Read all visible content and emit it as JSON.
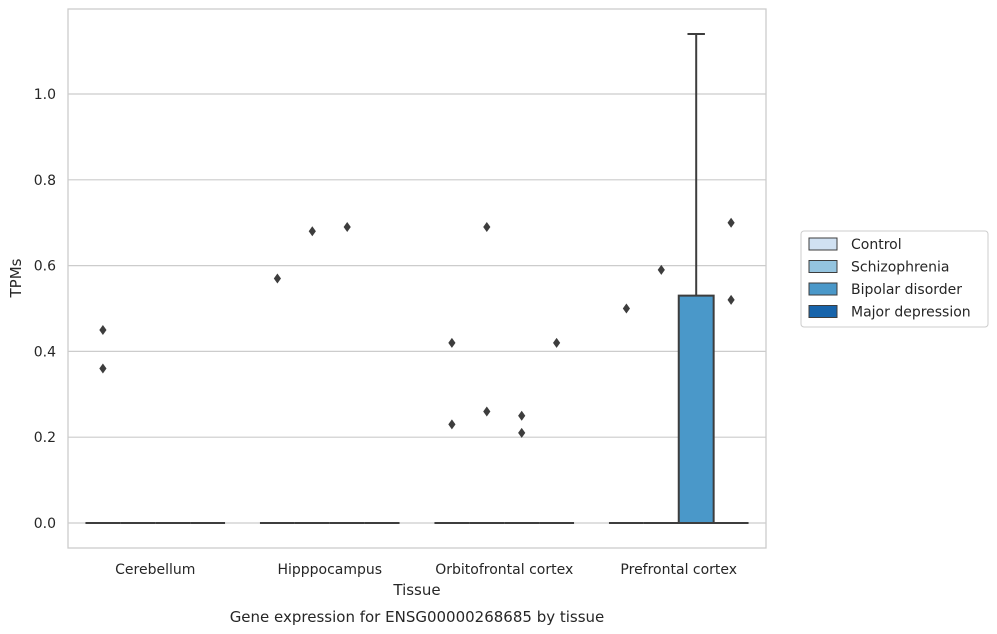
{
  "chart_data": {
    "type": "box",
    "categories": [
      "Cerebellum",
      "Hipppocampus",
      "Orbitofrontal cortex",
      "Prefrontal cortex"
    ],
    "xlabel": "Tissue",
    "ylabel": "TPMs",
    "caption": "Gene expression for ENSG00000268685 by tissue",
    "ylim": [
      -0.055,
      1.2
    ],
    "yticks": [
      "0.0",
      "0.2",
      "0.4",
      "0.6",
      "0.8",
      "1.0"
    ],
    "grid": "horizontal",
    "legend_position": "right",
    "series": [
      {
        "name": "Control",
        "color": "#d0e1f2"
      },
      {
        "name": "Schizophrenia",
        "color": "#94c4df"
      },
      {
        "name": "Bipolar disorder",
        "color": "#4a98c9"
      },
      {
        "name": "Major depression",
        "color": "#1764ab"
      }
    ],
    "boxes": [
      {
        "category": "Cerebellum",
        "series": "Control",
        "q1": 0,
        "median": 0,
        "q3": 0,
        "whisker_low": 0,
        "whisker_high": 0,
        "outliers": [
          0.45,
          0.36
        ]
      },
      {
        "category": "Cerebellum",
        "series": "Schizophrenia",
        "q1": 0,
        "median": 0,
        "q3": 0,
        "whisker_low": 0,
        "whisker_high": 0,
        "outliers": []
      },
      {
        "category": "Cerebellum",
        "series": "Bipolar disorder",
        "q1": 0,
        "median": 0,
        "q3": 0,
        "whisker_low": 0,
        "whisker_high": 0,
        "outliers": []
      },
      {
        "category": "Cerebellum",
        "series": "Major depression",
        "q1": 0,
        "median": 0,
        "q3": 0,
        "whisker_low": 0,
        "whisker_high": 0,
        "outliers": []
      },
      {
        "category": "Hipppocampus",
        "series": "Control",
        "q1": 0,
        "median": 0,
        "q3": 0,
        "whisker_low": 0,
        "whisker_high": 0,
        "outliers": [
          0.57
        ]
      },
      {
        "category": "Hipppocampus",
        "series": "Schizophrenia",
        "q1": 0,
        "median": 0,
        "q3": 0,
        "whisker_low": 0,
        "whisker_high": 0,
        "outliers": [
          0.68
        ]
      },
      {
        "category": "Hipppocampus",
        "series": "Bipolar disorder",
        "q1": 0,
        "median": 0,
        "q3": 0,
        "whisker_low": 0,
        "whisker_high": 0,
        "outliers": [
          0.69
        ]
      },
      {
        "category": "Hipppocampus",
        "series": "Major depression",
        "q1": 0,
        "median": 0,
        "q3": 0,
        "whisker_low": 0,
        "whisker_high": 0,
        "outliers": []
      },
      {
        "category": "Orbitofrontal cortex",
        "series": "Control",
        "q1": 0,
        "median": 0,
        "q3": 0,
        "whisker_low": 0,
        "whisker_high": 0,
        "outliers": [
          0.42,
          0.23
        ]
      },
      {
        "category": "Orbitofrontal cortex",
        "series": "Schizophrenia",
        "q1": 0,
        "median": 0,
        "q3": 0,
        "whisker_low": 0,
        "whisker_high": 0,
        "outliers": [
          0.69,
          0.26
        ]
      },
      {
        "category": "Orbitofrontal cortex",
        "series": "Bipolar disorder",
        "q1": 0,
        "median": 0,
        "q3": 0,
        "whisker_low": 0,
        "whisker_high": 0,
        "outliers": [
          0.25,
          0.21
        ]
      },
      {
        "category": "Orbitofrontal cortex",
        "series": "Major depression",
        "q1": 0,
        "median": 0,
        "q3": 0,
        "whisker_low": 0,
        "whisker_high": 0,
        "outliers": [
          0.42
        ]
      },
      {
        "category": "Prefrontal cortex",
        "series": "Control",
        "q1": 0,
        "median": 0,
        "q3": 0,
        "whisker_low": 0,
        "whisker_high": 0,
        "outliers": [
          0.5
        ]
      },
      {
        "category": "Prefrontal cortex",
        "series": "Schizophrenia",
        "q1": 0,
        "median": 0,
        "q3": 0,
        "whisker_low": 0,
        "whisker_high": 0,
        "outliers": [
          0.59
        ]
      },
      {
        "category": "Prefrontal cortex",
        "series": "Bipolar disorder",
        "q1": 0,
        "median": 0,
        "q3": 0.53,
        "whisker_low": 0,
        "whisker_high": 1.14,
        "outliers": []
      },
      {
        "category": "Prefrontal cortex",
        "series": "Major depression",
        "q1": 0,
        "median": 0,
        "q3": 0,
        "whisker_low": 0,
        "whisker_high": 0,
        "outliers": [
          0.7,
          0.52
        ]
      }
    ]
  }
}
